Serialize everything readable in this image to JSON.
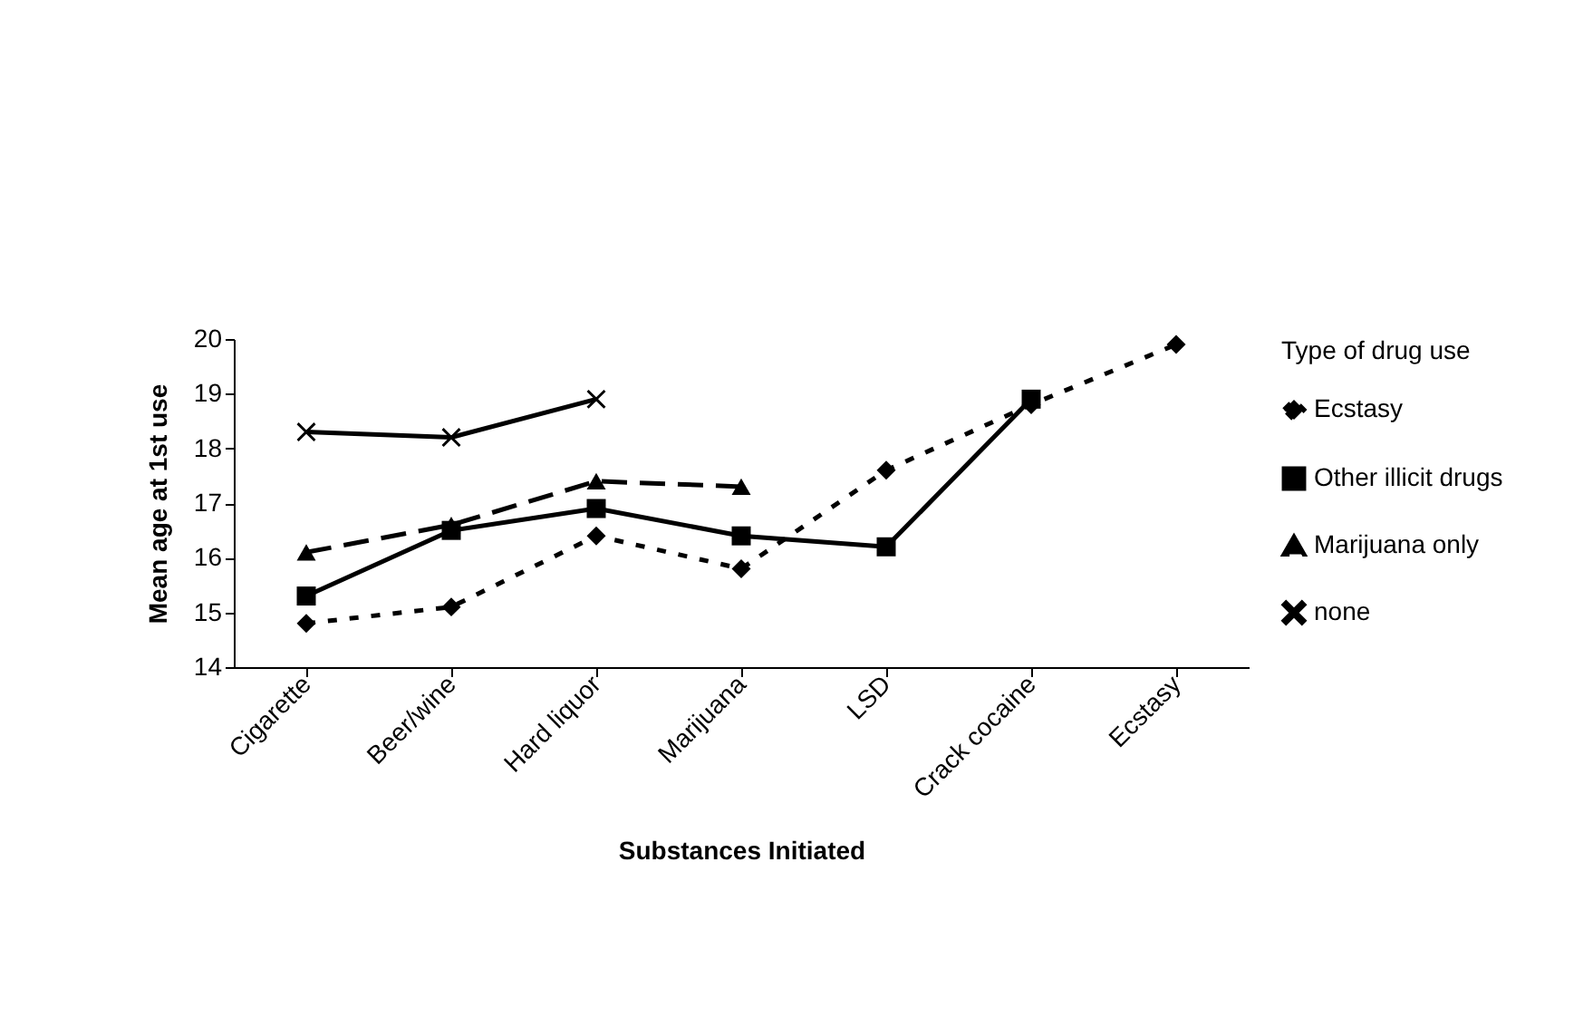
{
  "chart_data": {
    "type": "line",
    "xlabel": "Substances Initiated",
    "ylabel": "Mean age at 1st use",
    "legend_title": "Type of drug use",
    "categories": [
      "Cigarette",
      "Beer/wine",
      "Hard liquor",
      "Marijuana",
      "LSD",
      "Crack cocaine",
      "Ecstasy"
    ],
    "ylim": [
      14,
      20
    ],
    "yticks": [
      14,
      15,
      16,
      17,
      18,
      19,
      20
    ],
    "grid": false,
    "legend": "right",
    "series": [
      {
        "name": "Ecstasy",
        "color": "#000000",
        "marker": "diamond",
        "line_style": "dotted",
        "values": [
          14.8,
          15.1,
          16.4,
          15.8,
          17.6,
          18.8,
          19.9
        ]
      },
      {
        "name": "Other illicit drugs",
        "color": "#000000",
        "marker": "square",
        "line_style": "solid",
        "values": [
          15.3,
          16.5,
          16.9,
          16.4,
          16.2,
          18.9,
          null
        ]
      },
      {
        "name": "Marijuana only",
        "color": "#000000",
        "marker": "triangle",
        "line_style": "dashed",
        "values": [
          16.1,
          16.6,
          17.4,
          17.3,
          null,
          null,
          null
        ]
      },
      {
        "name": "none",
        "color": "#000000",
        "marker": "cross",
        "line_style": "solid",
        "values": [
          18.3,
          18.2,
          18.9,
          null,
          null,
          null,
          null
        ]
      }
    ]
  }
}
